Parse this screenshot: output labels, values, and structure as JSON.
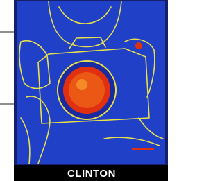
{
  "caption": "CLINTON"
}
